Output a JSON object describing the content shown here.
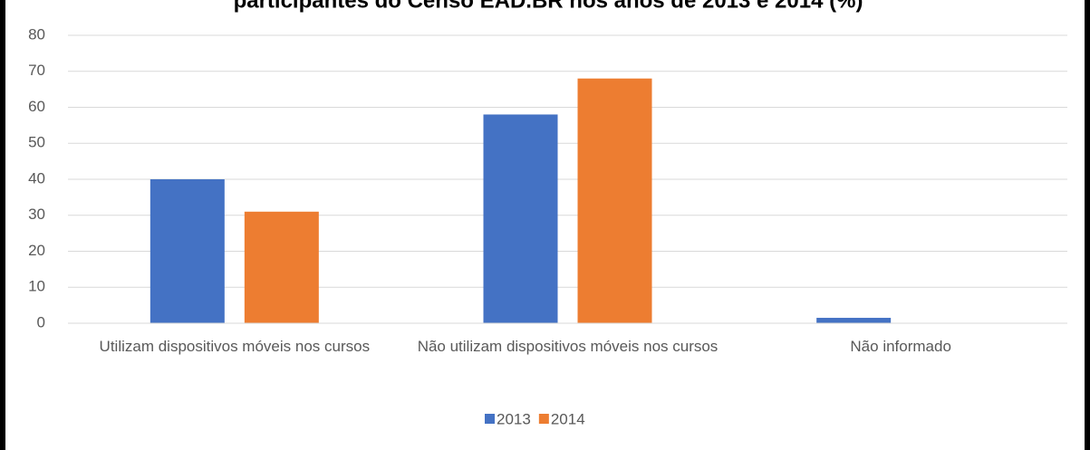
{
  "chart_data": {
    "type": "bar",
    "title": "participantes do Censo EAD.BR nos anos de 2013 e 2014 (%)",
    "categories": [
      "Utilizam dispositivos móveis nos cursos",
      "Não utilizam dispositivos móveis nos cursos",
      "Não informado"
    ],
    "series": [
      {
        "name": "2013",
        "color": "#4472c4",
        "values": [
          40,
          58,
          1.5
        ]
      },
      {
        "name": "2014",
        "color": "#ed7d31",
        "values": [
          31,
          68,
          0
        ]
      }
    ],
    "ylim": [
      0,
      80
    ],
    "yticks": [
      0,
      10,
      20,
      30,
      40,
      50,
      60,
      70,
      80
    ],
    "grid": true,
    "legend": "bottom"
  }
}
